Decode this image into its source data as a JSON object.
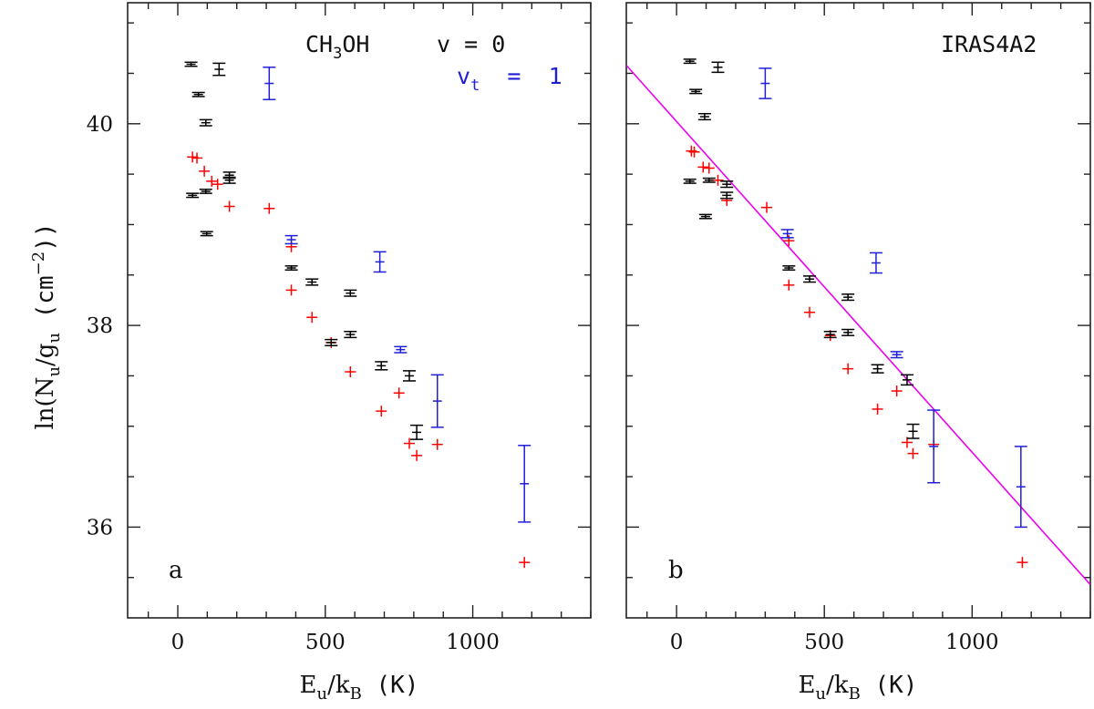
{
  "colors": {
    "v0": "#000000",
    "vt1": "#1f1fd6",
    "model": "#ff0000",
    "fit": "#ee00ee",
    "axis": "#222222"
  },
  "shared": {
    "ylabel_main": "ln(N",
    "ylabel_sub1": "u",
    "ylabel_mid": "/g",
    "ylabel_sub2": "u",
    "ylabel_unit": " (cm",
    "ylabel_sup": "−2",
    "ylabel_close": "))",
    "xlabel_main": "E",
    "xlabel_sub1": "u",
    "xlabel_mid": "/k",
    "xlabel_sub2": "B",
    "xlabel_unit": " (K)",
    "xticks": [
      0,
      500,
      1000
    ],
    "yticks": [
      36,
      38,
      40
    ],
    "xlim": [
      -170,
      1400
    ],
    "ylim": [
      35.1,
      41.2
    ]
  },
  "panel_a": {
    "label": "a",
    "molecule_main": "CH",
    "molecule_sub": "3",
    "molecule_end": "OH",
    "legend_v0": "v  =  0",
    "legend_vt_main": "v",
    "legend_vt_sub": "t",
    "legend_vt_end": "  =  1"
  },
  "panel_b": {
    "label": "b",
    "source": "IRAS4A2"
  },
  "chart_data": [
    {
      "type": "scatter",
      "panel": "a",
      "xlabel": "Eu/kB (K)",
      "ylabel": "ln(Nu/gu (cm−2))",
      "xlim": [
        -170,
        1400
      ],
      "ylim": [
        35.1,
        41.2
      ],
      "series": [
        {
          "name": "v = 0",
          "color": "#000000",
          "points": [
            {
              "x": 45,
              "y": 40.59,
              "err": 0.02
            },
            {
              "x": 140,
              "y": 40.54,
              "err": 0.06
            },
            {
              "x": 70,
              "y": 40.29,
              "err": 0.02
            },
            {
              "x": 95,
              "y": 40.01,
              "err": 0.03
            },
            {
              "x": 50,
              "y": 39.29,
              "err": 0.02
            },
            {
              "x": 95,
              "y": 39.33,
              "err": 0.02
            },
            {
              "x": 175,
              "y": 39.49,
              "err": 0.03
            },
            {
              "x": 175,
              "y": 39.44,
              "err": 0.03
            },
            {
              "x": 98,
              "y": 38.91,
              "err": 0.02
            },
            {
              "x": 385,
              "y": 38.57,
              "err": 0.02
            },
            {
              "x": 455,
              "y": 38.43,
              "err": 0.03
            },
            {
              "x": 585,
              "y": 38.32,
              "err": 0.03
            },
            {
              "x": 585,
              "y": 37.91,
              "err": 0.03
            },
            {
              "x": 520,
              "y": 37.83,
              "err": 0.03
            },
            {
              "x": 690,
              "y": 37.6,
              "err": 0.04
            },
            {
              "x": 785,
              "y": 37.5,
              "err": 0.05
            },
            {
              "x": 810,
              "y": 36.94,
              "err": 0.07
            }
          ]
        },
        {
          "name": "vt = 1",
          "color": "#1f1fd6",
          "points": [
            {
              "x": 310,
              "y": 40.4,
              "err": 0.16
            },
            {
              "x": 385,
              "y": 38.85,
              "err": 0.04
            },
            {
              "x": 685,
              "y": 38.63,
              "err": 0.1
            },
            {
              "x": 755,
              "y": 37.76,
              "err": 0.03
            },
            {
              "x": 880,
              "y": 37.25,
              "err": 0.26
            },
            {
              "x": 1175,
              "y": 36.43,
              "err": 0.38
            }
          ]
        },
        {
          "name": "",
          "color": "#ff0000",
          "points": [
            {
              "x": 50,
              "y": 39.67
            },
            {
              "x": 65,
              "y": 39.66
            },
            {
              "x": 90,
              "y": 39.53
            },
            {
              "x": 115,
              "y": 39.43
            },
            {
              "x": 135,
              "y": 39.4
            },
            {
              "x": 175,
              "y": 39.18
            },
            {
              "x": 310,
              "y": 39.16
            },
            {
              "x": 385,
              "y": 38.78
            },
            {
              "x": 385,
              "y": 38.35
            },
            {
              "x": 455,
              "y": 38.08
            },
            {
              "x": 520,
              "y": 37.83
            },
            {
              "x": 585,
              "y": 37.54
            },
            {
              "x": 690,
              "y": 37.15
            },
            {
              "x": 750,
              "y": 37.33
            },
            {
              "x": 785,
              "y": 36.83
            },
            {
              "x": 810,
              "y": 36.71
            },
            {
              "x": 880,
              "y": 36.82
            },
            {
              "x": 1175,
              "y": 35.65
            }
          ]
        }
      ]
    },
    {
      "type": "scatter",
      "panel": "b",
      "xlabel": "Eu/kB (K)",
      "xlim": [
        -170,
        1400
      ],
      "ylim": [
        35.1,
        41.2
      ],
      "fit_line": {
        "x": [
          -170,
          1400
        ],
        "y": [
          40.58,
          35.43
        ]
      },
      "series": [
        {
          "name": "v = 0",
          "color": "#000000",
          "points": [
            {
              "x": 45,
              "y": 40.62,
              "err": 0.02
            },
            {
              "x": 140,
              "y": 40.56,
              "err": 0.05
            },
            {
              "x": 65,
              "y": 40.32,
              "err": 0.02
            },
            {
              "x": 95,
              "y": 40.07,
              "err": 0.03
            },
            {
              "x": 45,
              "y": 39.43,
              "err": 0.02
            },
            {
              "x": 110,
              "y": 39.44,
              "err": 0.02
            },
            {
              "x": 170,
              "y": 39.4,
              "err": 0.03
            },
            {
              "x": 170,
              "y": 39.29,
              "err": 0.03
            },
            {
              "x": 98,
              "y": 39.08,
              "err": 0.02
            },
            {
              "x": 380,
              "y": 38.57,
              "err": 0.02
            },
            {
              "x": 450,
              "y": 38.46,
              "err": 0.03
            },
            {
              "x": 580,
              "y": 38.28,
              "err": 0.03
            },
            {
              "x": 580,
              "y": 37.93,
              "err": 0.03
            },
            {
              "x": 520,
              "y": 37.91,
              "err": 0.03
            },
            {
              "x": 680,
              "y": 37.57,
              "err": 0.04
            },
            {
              "x": 780,
              "y": 37.46,
              "err": 0.05
            },
            {
              "x": 800,
              "y": 36.95,
              "err": 0.07
            }
          ]
        },
        {
          "name": "vt = 1",
          "color": "#1f1fd6",
          "points": [
            {
              "x": 300,
              "y": 40.4,
              "err": 0.15
            },
            {
              "x": 375,
              "y": 38.91,
              "err": 0.04
            },
            {
              "x": 675,
              "y": 38.62,
              "err": 0.1
            },
            {
              "x": 745,
              "y": 37.71,
              "err": 0.03
            },
            {
              "x": 870,
              "y": 36.8,
              "err": 0.36
            },
            {
              "x": 1165,
              "y": 36.4,
              "err": 0.4
            }
          ]
        },
        {
          "name": "",
          "color": "#ff0000",
          "points": [
            {
              "x": 50,
              "y": 39.73
            },
            {
              "x": 60,
              "y": 39.72
            },
            {
              "x": 90,
              "y": 39.57
            },
            {
              "x": 110,
              "y": 39.56
            },
            {
              "x": 140,
              "y": 39.44
            },
            {
              "x": 170,
              "y": 39.24
            },
            {
              "x": 305,
              "y": 39.17
            },
            {
              "x": 380,
              "y": 38.84
            },
            {
              "x": 380,
              "y": 38.4
            },
            {
              "x": 450,
              "y": 38.13
            },
            {
              "x": 520,
              "y": 37.9
            },
            {
              "x": 580,
              "y": 37.57
            },
            {
              "x": 680,
              "y": 37.17
            },
            {
              "x": 745,
              "y": 37.35
            },
            {
              "x": 780,
              "y": 36.84
            },
            {
              "x": 800,
              "y": 36.73
            },
            {
              "x": 870,
              "y": 36.82
            },
            {
              "x": 1170,
              "y": 35.65
            }
          ]
        }
      ]
    }
  ]
}
